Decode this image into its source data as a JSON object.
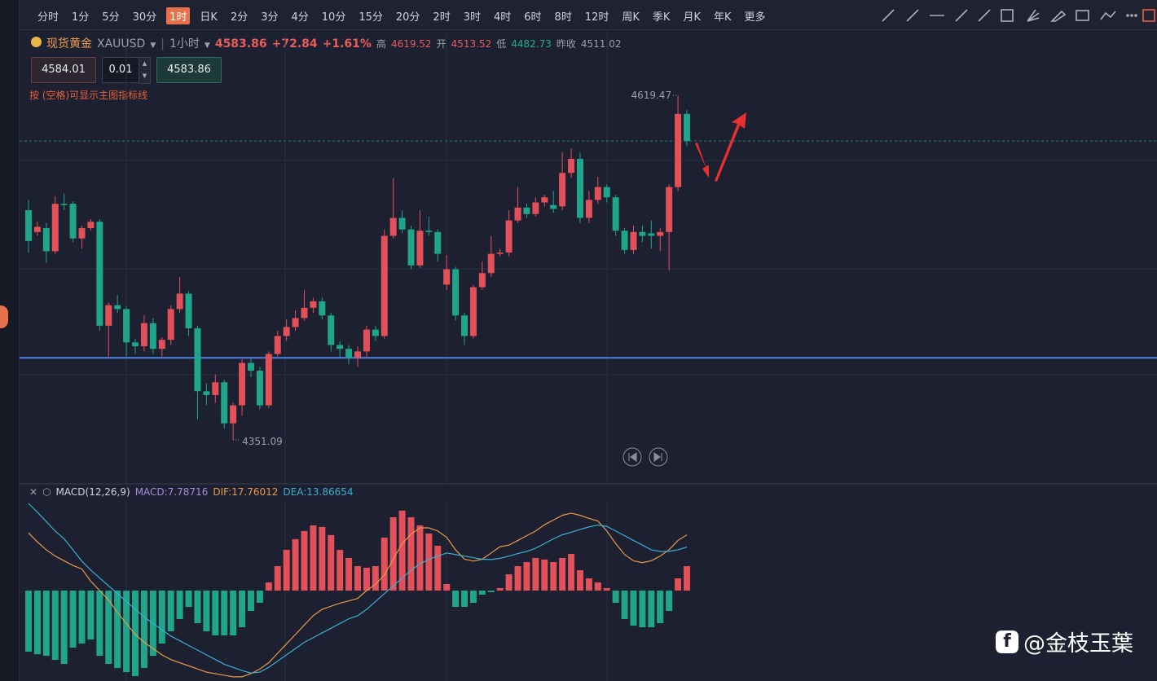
{
  "toolbar": {
    "periods": [
      "分时",
      "1分",
      "5分",
      "30分",
      "1时",
      "日K",
      "2分",
      "3分",
      "4分",
      "10分",
      "15分",
      "20分",
      "2时",
      "3时",
      "4时",
      "6时",
      "8时",
      "12时",
      "周K",
      "季K",
      "月K",
      "年K",
      "更多"
    ],
    "active": 4
  },
  "quote": {
    "name": "现货黄金",
    "symbol": "XAUUSD",
    "interval": "1小时",
    "price": "4583.86",
    "change": "+72.84",
    "change_pct": "+1.61%",
    "high_label": "高",
    "high": "4619.52",
    "open_label": "开",
    "open": "4513.52",
    "low_label": "低",
    "low": "4482.73",
    "prev_label": "昨收",
    "prev": "4511.02"
  },
  "order": {
    "sell": "4584.01",
    "qty": "0.01",
    "buy": "4583.86"
  },
  "hint": "按 (空格)可显示主图指标线",
  "chart_data": [
    {
      "type": "candlestick",
      "up_color": "#e2505a",
      "down_color": "#1fa58a",
      "hline": 4415,
      "hline_color": "#4f7fe0",
      "open": [
        4530,
        4513,
        4516,
        4498,
        4535,
        4535,
        4508,
        4516,
        4521,
        4440,
        4456,
        4453,
        4427,
        4424,
        4442,
        4422,
        4429,
        4453,
        4465,
        4438,
        4389,
        4386,
        4396,
        4364,
        4378,
        4411,
        4405,
        4378,
        4418,
        4432,
        4439,
        4446,
        4454,
        4459,
        4448,
        4425,
        4422,
        4415,
        4420,
        4437,
        4432,
        4510,
        4524,
        4515,
        4487,
        4514,
        4513,
        4472,
        4484,
        4448,
        4432,
        4470,
        4481,
        4496,
        4497,
        4522,
        4532,
        4527,
        4536,
        4534,
        4533,
        4559,
        4570,
        4524,
        4538,
        4548,
        4540,
        4514,
        4499,
        4513,
        4512,
        4510,
        4513,
        4548,
        4605
      ],
      "close": [
        4506,
        4517,
        4498,
        4535,
        4534,
        4508,
        4516,
        4521,
        4440,
        4456,
        4453,
        4427,
        4424,
        4442,
        4422,
        4429,
        4453,
        4465,
        4438,
        4389,
        4386,
        4396,
        4364,
        4378,
        4411,
        4405,
        4378,
        4418,
        4432,
        4439,
        4446,
        4454,
        4459,
        4448,
        4425,
        4422,
        4415,
        4420,
        4437,
        4432,
        4510,
        4524,
        4515,
        4487,
        4514,
        4513,
        4496,
        4484,
        4448,
        4432,
        4470,
        4481,
        4496,
        4497,
        4522,
        4532,
        4527,
        4536,
        4540,
        4531,
        4559,
        4570,
        4524,
        4538,
        4548,
        4540,
        4514,
        4499,
        4513,
        4510,
        4510,
        4513,
        4548,
        4605,
        4583.86
      ],
      "high": [
        4538,
        4521,
        4520,
        4541,
        4543,
        4537,
        4518,
        4523,
        4523,
        4458,
        4464,
        4455,
        4430,
        4448,
        4446,
        4431,
        4456,
        4478,
        4467,
        4440,
        4395,
        4402,
        4398,
        4380,
        4414,
        4415,
        4408,
        4420,
        4436,
        4445,
        4452,
        4468,
        4462,
        4462,
        4450,
        4428,
        4425,
        4424,
        4440,
        4440,
        4515,
        4555,
        4530,
        4518,
        4530,
        4525,
        4515,
        4495,
        4486,
        4450,
        4472,
        4490,
        4510,
        4500,
        4530,
        4548,
        4535,
        4540,
        4542,
        4545,
        4575,
        4578,
        4575,
        4545,
        4556,
        4550,
        4542,
        4516,
        4518,
        4518,
        4522,
        4516,
        4550,
        4619.47,
        4608
      ],
      "low": [
        4497,
        4510,
        4489,
        4496,
        4530,
        4505,
        4500,
        4514,
        4436,
        4416,
        4450,
        4416,
        4418,
        4420,
        4418,
        4416,
        4425,
        4450,
        4432,
        4367,
        4378,
        4380,
        4360,
        4351.09,
        4370,
        4400,
        4375,
        4376,
        4416,
        4428,
        4436,
        4444,
        4450,
        4445,
        4420,
        4415,
        4410,
        4408,
        4415,
        4428,
        4430,
        4508,
        4512,
        4484,
        4485,
        4510,
        4490,
        4468,
        4444,
        4425,
        4430,
        4468,
        4478,
        4494,
        4494,
        4520,
        4524,
        4525,
        4533,
        4528,
        4530,
        4555,
        4520,
        4520,
        4535,
        4536,
        4510,
        4496,
        4496,
        4505,
        4500,
        4498,
        4483,
        4545,
        4580
      ]
    },
    {
      "type": "macd",
      "title": "MACD(12,26,9)",
      "macd_label": "MACD:",
      "dif_label": "DIF:",
      "dea_label": "DEA:",
      "macd_color": "#a78bdb",
      "dif_color": "#e89a4a",
      "dea_color": "#3bb0d0",
      "macd": [
        -19.5,
        -20.3,
        -20.8,
        -22.1,
        -23.4,
        -18.2,
        -16.9,
        -15.6,
        -20.8,
        -23.4,
        -24.7,
        -26,
        -27.3,
        -24.7,
        -20.8,
        -16.9,
        -13,
        -9.1,
        -5.2,
        -10.4,
        -13,
        -14.3,
        -14.3,
        -14.3,
        -11.7,
        -6.5,
        -3.9,
        2.6,
        7.8,
        13,
        16.4,
        19,
        20.8,
        20.3,
        17.7,
        13,
        10.4,
        7.8,
        7.3,
        7.8,
        16.9,
        23.4,
        25.5,
        23.4,
        20.8,
        18.2,
        14.3,
        2.1,
        -5.2,
        -5.2,
        -3.9,
        -1.3,
        -0.5,
        0.8,
        5.2,
        7.8,
        9.1,
        10.4,
        9.9,
        9.1,
        10.4,
        11.7,
        6.5,
        3.9,
        2.6,
        0.8,
        -3.9,
        -9.1,
        -11.2,
        -11.7,
        -11.7,
        -10.4,
        -6.5,
        3.9,
        7.78716
      ],
      "dif": [
        18.4,
        15.5,
        13,
        11,
        9.5,
        8,
        6.9,
        3,
        0,
        -3,
        -7,
        -10.5,
        -14,
        -16.5,
        -18.5,
        -20.5,
        -22,
        -23,
        -24,
        -25,
        -26,
        -26.5,
        -27,
        -27.5,
        -27.5,
        -26.5,
        -25,
        -23,
        -20,
        -17,
        -14,
        -11,
        -8,
        -6,
        -5,
        -4,
        -3.3,
        -2.5,
        0,
        2,
        5,
        10,
        15,
        18,
        20,
        20,
        19,
        17,
        13,
        10,
        9.4,
        10,
        12,
        14,
        14.5,
        16,
        17.5,
        19,
        21,
        22.5,
        24,
        24.7,
        24,
        23,
        22.2,
        19,
        15,
        11.5,
        9.5,
        8.9,
        9.5,
        11,
        13,
        16,
        17.76012
      ],
      "dea": [
        27.8,
        25,
        22,
        19,
        16.5,
        13,
        9.4,
        6.5,
        4,
        1.5,
        -1,
        -3.5,
        -6,
        -8.4,
        -10.5,
        -12.5,
        -14.5,
        -16,
        -17.5,
        -19,
        -20.5,
        -22,
        -23.5,
        -24.5,
        -25.5,
        -26.3,
        -26,
        -24.5,
        -22.5,
        -20.5,
        -18.5,
        -16.5,
        -15,
        -13.5,
        -12,
        -10.5,
        -9,
        -8,
        -6,
        -3.5,
        -1,
        1.5,
        4,
        6.5,
        8.5,
        10,
        11,
        12,
        11.5,
        11,
        10.5,
        10,
        9.9,
        10.3,
        11,
        11.8,
        12.5,
        13.5,
        15,
        16.5,
        17.8,
        18.6,
        19.5,
        20.3,
        20.9,
        20.5,
        19,
        17.5,
        16,
        14.5,
        13,
        12.5,
        12.5,
        13,
        13.86654
      ]
    }
  ],
  "watermark": "@金枝玉葉"
}
